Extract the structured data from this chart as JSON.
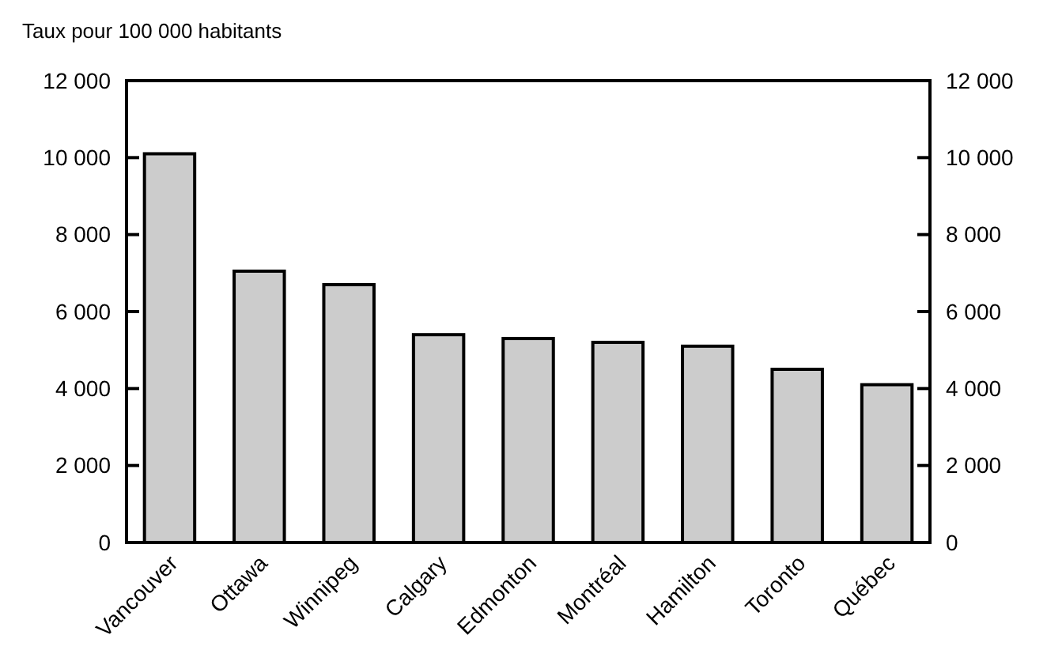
{
  "chart_data": {
    "type": "bar",
    "ylabel": "Taux pour 100 000 habitants",
    "categories": [
      "Vancouver",
      "Ottawa",
      "Winnipeg",
      "Calgary",
      "Edmonton",
      "Montréal",
      "Hamilton",
      "Toronto",
      "Québec"
    ],
    "values": [
      10100,
      7050,
      6700,
      5400,
      5300,
      5200,
      5100,
      4500,
      4100
    ],
    "color": "#cccccc",
    "ylim": [
      0,
      12000
    ],
    "yticks": [
      0,
      {
        "value": 2000,
        "label": "2 000"
      },
      {
        "value": 4000,
        "label": "4 000"
      },
      {
        "value": 6000,
        "label": "6 000"
      },
      {
        "value": 8000,
        "label": "8 000"
      },
      {
        "value": 10000,
        "label": "10 000"
      },
      {
        "value": 12000,
        "label": "12 000"
      }
    ],
    "y2lim": [
      0,
      12000
    ],
    "y2ticks": [
      0,
      {
        "value": 2000,
        "label": "2 000"
      },
      {
        "value": 4000,
        "label": "4 000"
      },
      {
        "value": 6000,
        "label": "6 000"
      },
      {
        "value": 8000,
        "label": "8 000"
      },
      {
        "value": 10000,
        "label": "10 000"
      },
      {
        "value": 12000,
        "label": "12 000"
      }
    ]
  }
}
